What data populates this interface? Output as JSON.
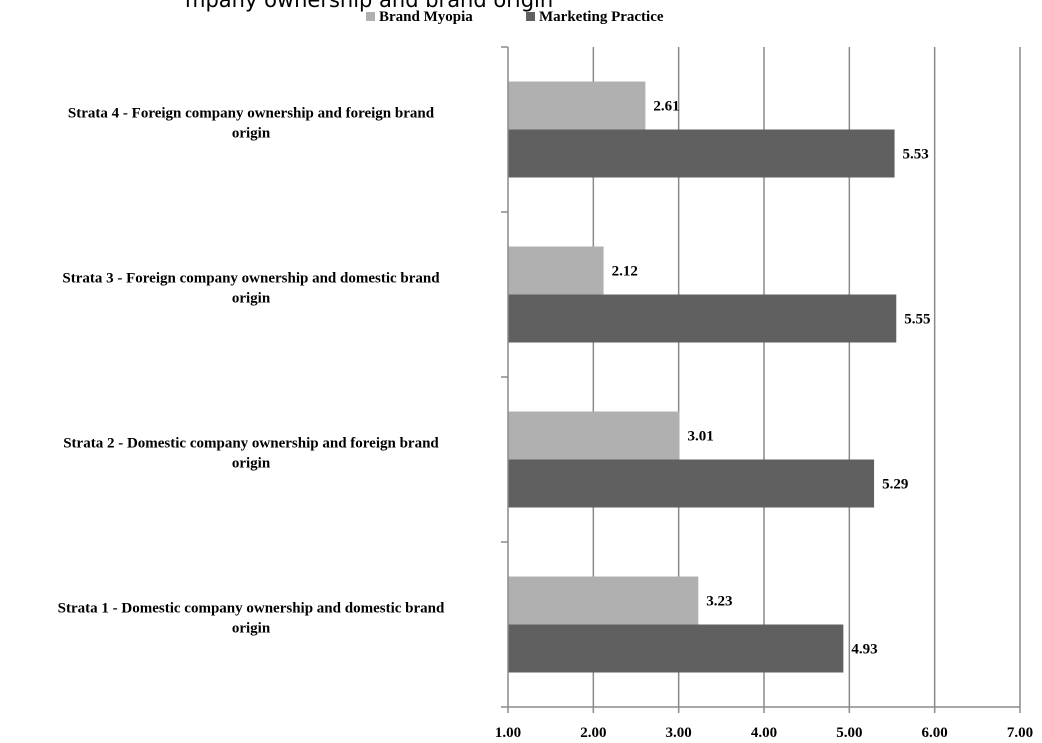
{
  "header_fragment": "mpany ownership and brand origin",
  "chart_data": {
    "type": "bar",
    "orientation": "horizontal",
    "categories": [
      [
        "Strata 4 - Foreign company ownership and foreign brand",
        "origin"
      ],
      [
        "Strata 3 - Foreign company ownership and domestic brand",
        "origin"
      ],
      [
        "Strata 2 - Domestic company ownership and foreign brand",
        "origin"
      ],
      [
        "Strata 1 - Domestic company ownership and domestic brand",
        "origin"
      ]
    ],
    "series": [
      {
        "name": "Brand Myopia",
        "color": "#b0b0b0",
        "values": [
          2.61,
          2.12,
          3.01,
          3.23
        ]
      },
      {
        "name": "Marketing Practice",
        "color": "#606060",
        "values": [
          5.53,
          5.55,
          5.29,
          4.93
        ]
      }
    ],
    "xlim": [
      1.0,
      7.0
    ],
    "xticks": [
      "1.00",
      "2.00",
      "3.00",
      "4.00",
      "5.00",
      "6.00",
      "7.00"
    ],
    "value_format": "2 decimals",
    "grid": "vertical",
    "legend_position": "top"
  }
}
